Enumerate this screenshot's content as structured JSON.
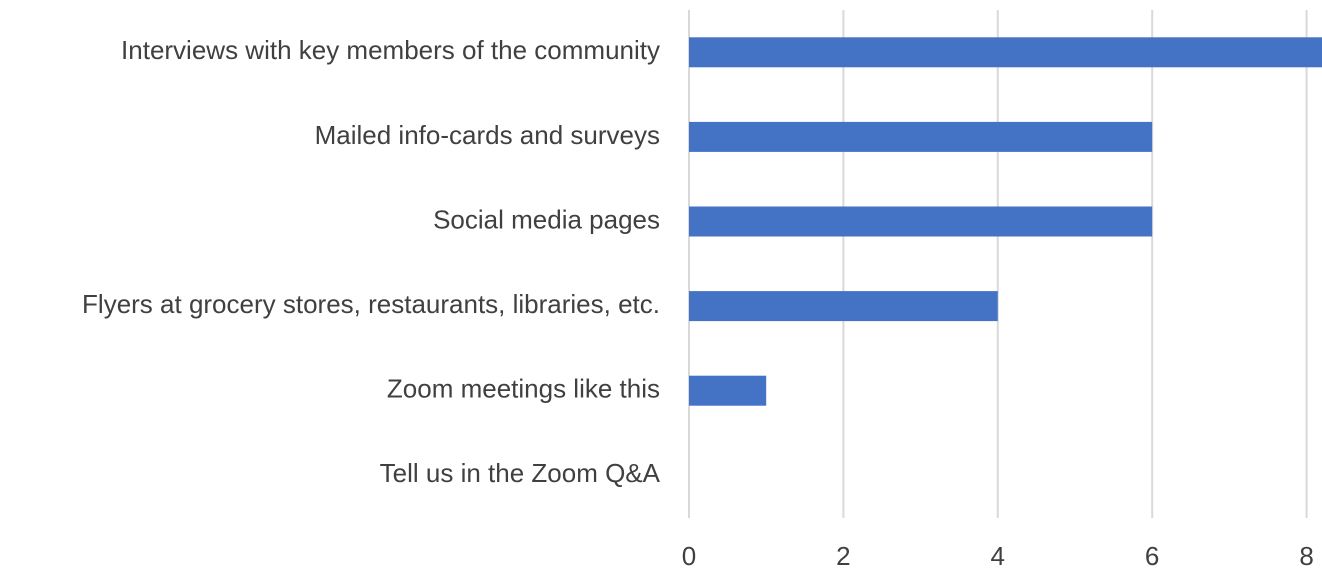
{
  "chart_data": {
    "type": "bar",
    "orientation": "horizontal",
    "categories": [
      "Interviews with key members of the community",
      "Mailed info-cards and surveys",
      "Social media pages",
      "Flyers at grocery stores, restaurants, libraries, etc.",
      "Zoom meetings like this",
      "Tell us in the Zoom Q&A"
    ],
    "values": [
      8.2,
      6,
      6,
      4,
      1,
      0
    ],
    "color": "#4472c4",
    "xlim": [
      0,
      8.2
    ],
    "xticks": [
      0,
      2,
      4,
      6,
      8
    ],
    "grid": true
  }
}
